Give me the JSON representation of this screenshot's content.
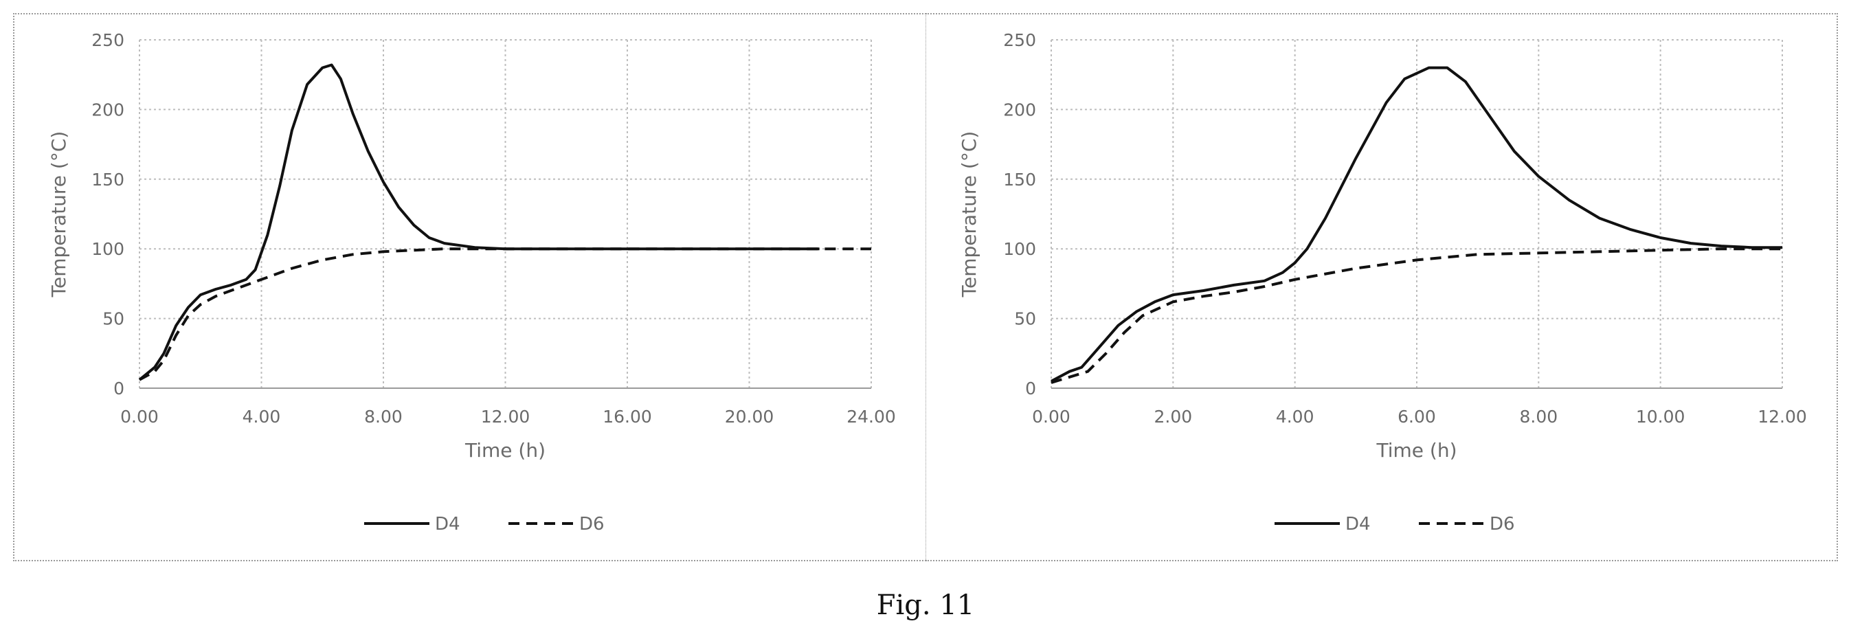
{
  "figure_caption": "Fig. 11",
  "chart_data": [
    {
      "type": "line",
      "xlabel": "Time (h)",
      "ylabel": "Temperature (°C)",
      "xlim": [
        0,
        24
      ],
      "ylim": [
        0,
        250
      ],
      "x_ticks": [
        "0.00",
        "4.00",
        "8.00",
        "12.00",
        "16.00",
        "20.00",
        "24.00"
      ],
      "y_ticks": [
        "0",
        "50",
        "100",
        "150",
        "200",
        "250"
      ],
      "grid": true,
      "legend_position": "bottom",
      "series": [
        {
          "name": "D4",
          "style": "solid",
          "x": [
            0,
            0.5,
            0.8,
            1.2,
            1.6,
            2,
            2.5,
            3,
            3.5,
            3.8,
            4.2,
            4.6,
            5,
            5.5,
            6,
            6.3,
            6.6,
            7,
            7.5,
            8,
            8.5,
            9,
            9.5,
            10,
            11,
            12,
            14,
            16,
            18,
            20,
            22.3
          ],
          "y": [
            6,
            15,
            25,
            45,
            58,
            67,
            71,
            74,
            78,
            85,
            110,
            145,
            185,
            218,
            230,
            232,
            222,
            197,
            170,
            148,
            130,
            117,
            108,
            104,
            101,
            100,
            100,
            100,
            100,
            100,
            100
          ]
        },
        {
          "name": "D6",
          "style": "dashed",
          "x": [
            0,
            0.5,
            0.8,
            1.2,
            1.6,
            2,
            2.5,
            3,
            4,
            5,
            6,
            7,
            8,
            9,
            10,
            12,
            16,
            20,
            24
          ],
          "y": [
            6,
            12,
            20,
            38,
            52,
            60,
            66,
            70,
            78,
            86,
            92,
            96,
            98,
            99,
            100,
            100,
            100,
            100,
            100
          ]
        }
      ]
    },
    {
      "type": "line",
      "xlabel": "Time (h)",
      "ylabel": "Temperature (°C)",
      "xlim": [
        0,
        12
      ],
      "ylim": [
        0,
        250
      ],
      "x_ticks": [
        "0.00",
        "2.00",
        "4.00",
        "6.00",
        "8.00",
        "10.00",
        "12.00"
      ],
      "y_ticks": [
        "0",
        "50",
        "100",
        "150",
        "200",
        "250"
      ],
      "grid": true,
      "legend_position": "bottom",
      "series": [
        {
          "name": "D4",
          "style": "solid",
          "x": [
            0,
            0.3,
            0.5,
            0.8,
            1.1,
            1.4,
            1.7,
            2,
            2.5,
            3,
            3.5,
            3.8,
            4,
            4.2,
            4.5,
            5,
            5.5,
            5.8,
            6.2,
            6.5,
            6.8,
            7.2,
            7.6,
            8,
            8.5,
            9,
            9.5,
            10,
            10.5,
            11,
            11.5,
            12
          ],
          "y": [
            5,
            12,
            15,
            30,
            45,
            55,
            62,
            67,
            70,
            74,
            77,
            83,
            90,
            100,
            122,
            165,
            205,
            222,
            230,
            230,
            220,
            195,
            170,
            152,
            135,
            122,
            114,
            108,
            104,
            102,
            101,
            101
          ]
        },
        {
          "name": "D6",
          "style": "dashed",
          "x": [
            0,
            0.3,
            0.6,
            0.9,
            1.2,
            1.5,
            2,
            2.5,
            3,
            3.5,
            4,
            5,
            6,
            7,
            8,
            9,
            10,
            11,
            12
          ],
          "y": [
            4,
            8,
            12,
            25,
            40,
            52,
            62,
            66,
            69,
            73,
            78,
            86,
            92,
            96,
            97,
            98,
            99,
            100,
            100
          ]
        }
      ]
    }
  ]
}
